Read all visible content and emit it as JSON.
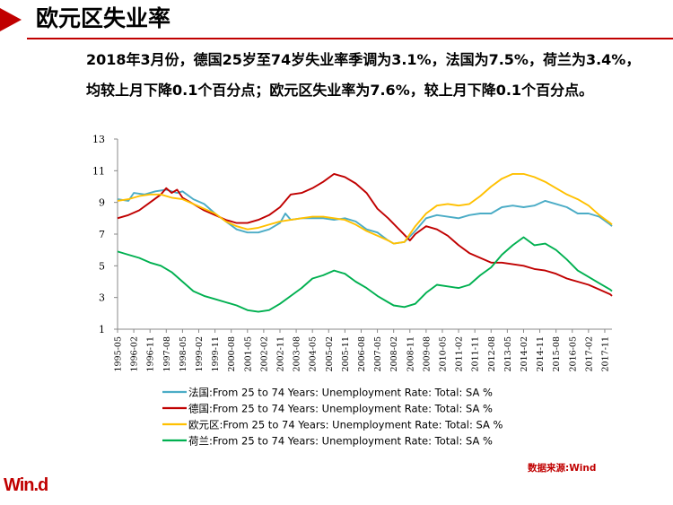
{
  "header": {
    "title": "欧元区失业率"
  },
  "summary": "2018年3月份，德国25岁至74岁失业率季调为3.1%，法国为7.5%，荷兰为3.4%，均较上月下降0.1个百分点；欧元区失业率为7.6%，较上月下降0.1个百分点。",
  "footer": {
    "source": "数据来源:Wind",
    "logo": "Win.d"
  },
  "colors": {
    "accent": "#c00000",
    "france": "#4bacc6",
    "germany": "#c00000",
    "eurozone": "#ffc000",
    "netherlands": "#00b050"
  },
  "chart_data": {
    "type": "line",
    "ylim": [
      1,
      13
    ],
    "yticks": [
      1,
      3,
      5,
      7,
      9,
      11,
      13
    ],
    "xlim": [
      "1995-05",
      "2018-03"
    ],
    "xtick_labels": [
      "1995-05",
      "1996-02",
      "1996-11",
      "1997-08",
      "1998-05",
      "1999-02",
      "1999-11",
      "2000-08",
      "2001-05",
      "2002-02",
      "2002-11",
      "2003-08",
      "2004-05",
      "2005-02",
      "2005-11",
      "2006-08",
      "2007-05",
      "2008-02",
      "2008-11",
      "2009-08",
      "2010-05",
      "2011-02",
      "2011-11",
      "2012-08",
      "2013-05",
      "2014-02",
      "2014-11",
      "2015-08",
      "2016-05",
      "2017-02",
      "2017-11"
    ],
    "grid": false,
    "legend": "bottom",
    "series": [
      {
        "name": "法国:From  25 to 74 Years: Unemployment  Rate: Total:  SA %",
        "points": [
          [
            "1995-05",
            9.2
          ],
          [
            "1995-11",
            9.1
          ],
          [
            "1996-02",
            9.6
          ],
          [
            "1996-08",
            9.5
          ],
          [
            "1997-02",
            9.7
          ],
          [
            "1997-08",
            9.8
          ],
          [
            "1998-02",
            9.6
          ],
          [
            "1998-05",
            9.7
          ],
          [
            "1998-11",
            9.2
          ],
          [
            "1999-05",
            8.9
          ],
          [
            "1999-11",
            8.3
          ],
          [
            "2000-05",
            7.8
          ],
          [
            "2000-11",
            7.3
          ],
          [
            "2001-05",
            7.1
          ],
          [
            "2001-11",
            7.1
          ],
          [
            "2002-05",
            7.3
          ],
          [
            "2002-11",
            7.7
          ],
          [
            "2003-02",
            8.3
          ],
          [
            "2003-05",
            7.9
          ],
          [
            "2003-11",
            8.0
          ],
          [
            "2004-05",
            8.0
          ],
          [
            "2004-11",
            8.0
          ],
          [
            "2005-05",
            7.9
          ],
          [
            "2005-11",
            8.0
          ],
          [
            "2006-05",
            7.8
          ],
          [
            "2006-11",
            7.3
          ],
          [
            "2007-05",
            7.1
          ],
          [
            "2007-11",
            6.6
          ],
          [
            "2008-02",
            6.4
          ],
          [
            "2008-08",
            6.5
          ],
          [
            "2009-02",
            7.2
          ],
          [
            "2009-08",
            8.0
          ],
          [
            "2010-02",
            8.2
          ],
          [
            "2010-08",
            8.1
          ],
          [
            "2011-02",
            8.0
          ],
          [
            "2011-08",
            8.2
          ],
          [
            "2012-02",
            8.3
          ],
          [
            "2012-08",
            8.3
          ],
          [
            "2013-02",
            8.7
          ],
          [
            "2013-08",
            8.8
          ],
          [
            "2014-02",
            8.7
          ],
          [
            "2014-08",
            8.8
          ],
          [
            "2015-02",
            9.1
          ],
          [
            "2015-08",
            8.9
          ],
          [
            "2016-02",
            8.7
          ],
          [
            "2016-08",
            8.3
          ],
          [
            "2017-02",
            8.3
          ],
          [
            "2017-08",
            8.1
          ],
          [
            "2018-02",
            7.6
          ],
          [
            "2018-03",
            7.5
          ]
        ]
      },
      {
        "name": "德国:From  25 to 74 Years: Unemployment  Rate: Total:  SA %",
        "points": [
          [
            "1995-05",
            8.0
          ],
          [
            "1995-11",
            8.2
          ],
          [
            "1996-05",
            8.5
          ],
          [
            "1996-11",
            9.0
          ],
          [
            "1997-05",
            9.5
          ],
          [
            "1997-08",
            9.9
          ],
          [
            "1997-11",
            9.6
          ],
          [
            "1998-02",
            9.8
          ],
          [
            "1998-05",
            9.3
          ],
          [
            "1998-11",
            8.9
          ],
          [
            "1999-05",
            8.5
          ],
          [
            "1999-11",
            8.2
          ],
          [
            "2000-05",
            7.9
          ],
          [
            "2000-11",
            7.7
          ],
          [
            "2001-05",
            7.7
          ],
          [
            "2001-11",
            7.9
          ],
          [
            "2002-05",
            8.2
          ],
          [
            "2002-11",
            8.7
          ],
          [
            "2003-05",
            9.5
          ],
          [
            "2003-11",
            9.6
          ],
          [
            "2004-05",
            9.9
          ],
          [
            "2004-11",
            10.3
          ],
          [
            "2005-05",
            10.8
          ],
          [
            "2005-11",
            10.6
          ],
          [
            "2006-05",
            10.2
          ],
          [
            "2006-11",
            9.6
          ],
          [
            "2007-05",
            8.6
          ],
          [
            "2007-11",
            8.0
          ],
          [
            "2008-05",
            7.3
          ],
          [
            "2008-11",
            6.6
          ],
          [
            "2009-02",
            7.0
          ],
          [
            "2009-08",
            7.5
          ],
          [
            "2010-02",
            7.3
          ],
          [
            "2010-08",
            6.9
          ],
          [
            "2011-02",
            6.3
          ],
          [
            "2011-08",
            5.8
          ],
          [
            "2012-02",
            5.5
          ],
          [
            "2012-08",
            5.2
          ],
          [
            "2013-02",
            5.2
          ],
          [
            "2013-08",
            5.1
          ],
          [
            "2014-02",
            5.0
          ],
          [
            "2014-08",
            4.8
          ],
          [
            "2015-02",
            4.7
          ],
          [
            "2015-08",
            4.5
          ],
          [
            "2016-02",
            4.2
          ],
          [
            "2016-08",
            4.0
          ],
          [
            "2017-02",
            3.8
          ],
          [
            "2017-08",
            3.5
          ],
          [
            "2018-02",
            3.2
          ],
          [
            "2018-03",
            3.1
          ]
        ]
      },
      {
        "name": "欧元区:From  25 to 74 Years: Unemployment  Rate: Total:  SA %",
        "points": [
          [
            "1995-05",
            9.1
          ],
          [
            "1995-11",
            9.2
          ],
          [
            "1996-05",
            9.4
          ],
          [
            "1996-11",
            9.5
          ],
          [
            "1997-05",
            9.5
          ],
          [
            "1997-11",
            9.3
          ],
          [
            "1998-05",
            9.2
          ],
          [
            "1998-11",
            8.9
          ],
          [
            "1999-05",
            8.6
          ],
          [
            "1999-11",
            8.3
          ],
          [
            "2000-05",
            7.8
          ],
          [
            "2000-11",
            7.5
          ],
          [
            "2001-05",
            7.3
          ],
          [
            "2001-11",
            7.4
          ],
          [
            "2002-05",
            7.6
          ],
          [
            "2002-11",
            7.8
          ],
          [
            "2003-05",
            7.9
          ],
          [
            "2003-11",
            8.0
          ],
          [
            "2004-05",
            8.1
          ],
          [
            "2004-11",
            8.1
          ],
          [
            "2005-05",
            8.0
          ],
          [
            "2005-11",
            7.9
          ],
          [
            "2006-05",
            7.6
          ],
          [
            "2006-11",
            7.2
          ],
          [
            "2007-05",
            6.9
          ],
          [
            "2007-11",
            6.6
          ],
          [
            "2008-02",
            6.4
          ],
          [
            "2008-08",
            6.5
          ],
          [
            "2009-02",
            7.5
          ],
          [
            "2009-08",
            8.3
          ],
          [
            "2010-02",
            8.8
          ],
          [
            "2010-08",
            8.9
          ],
          [
            "2011-02",
            8.8
          ],
          [
            "2011-08",
            8.9
          ],
          [
            "2012-02",
            9.4
          ],
          [
            "2012-08",
            10.0
          ],
          [
            "2013-02",
            10.5
          ],
          [
            "2013-08",
            10.8
          ],
          [
            "2014-02",
            10.8
          ],
          [
            "2014-08",
            10.6
          ],
          [
            "2015-02",
            10.3
          ],
          [
            "2015-08",
            9.9
          ],
          [
            "2016-02",
            9.5
          ],
          [
            "2016-08",
            9.2
          ],
          [
            "2017-02",
            8.8
          ],
          [
            "2017-08",
            8.2
          ],
          [
            "2018-02",
            7.7
          ],
          [
            "2018-03",
            7.6
          ]
        ]
      },
      {
        "name": "荷兰:From  25 to 74 Years: Unemployment  Rate: Total:  SA %",
        "points": [
          [
            "1995-05",
            5.9
          ],
          [
            "1995-11",
            5.7
          ],
          [
            "1996-05",
            5.5
          ],
          [
            "1996-11",
            5.2
          ],
          [
            "1997-05",
            5.0
          ],
          [
            "1997-11",
            4.6
          ],
          [
            "1998-05",
            4.0
          ],
          [
            "1998-11",
            3.4
          ],
          [
            "1999-05",
            3.1
          ],
          [
            "1999-11",
            2.9
          ],
          [
            "2000-05",
            2.7
          ],
          [
            "2000-11",
            2.5
          ],
          [
            "2001-05",
            2.2
          ],
          [
            "2001-11",
            2.1
          ],
          [
            "2002-05",
            2.2
          ],
          [
            "2002-11",
            2.6
          ],
          [
            "2003-05",
            3.1
          ],
          [
            "2003-11",
            3.6
          ],
          [
            "2004-05",
            4.2
          ],
          [
            "2004-11",
            4.4
          ],
          [
            "2005-05",
            4.7
          ],
          [
            "2005-11",
            4.5
          ],
          [
            "2006-05",
            4.0
          ],
          [
            "2006-11",
            3.6
          ],
          [
            "2007-05",
            3.1
          ],
          [
            "2007-11",
            2.7
          ],
          [
            "2008-02",
            2.5
          ],
          [
            "2008-08",
            2.4
          ],
          [
            "2009-02",
            2.6
          ],
          [
            "2009-08",
            3.3
          ],
          [
            "2010-02",
            3.8
          ],
          [
            "2010-08",
            3.7
          ],
          [
            "2011-02",
            3.6
          ],
          [
            "2011-08",
            3.8
          ],
          [
            "2012-02",
            4.4
          ],
          [
            "2012-08",
            4.9
          ],
          [
            "2013-02",
            5.7
          ],
          [
            "2013-08",
            6.3
          ],
          [
            "2014-02",
            6.8
          ],
          [
            "2014-08",
            6.3
          ],
          [
            "2015-02",
            6.4
          ],
          [
            "2015-08",
            6.0
          ],
          [
            "2016-02",
            5.4
          ],
          [
            "2016-08",
            4.7
          ],
          [
            "2017-02",
            4.3
          ],
          [
            "2017-08",
            3.9
          ],
          [
            "2018-02",
            3.5
          ],
          [
            "2018-03",
            3.4
          ]
        ]
      }
    ]
  }
}
